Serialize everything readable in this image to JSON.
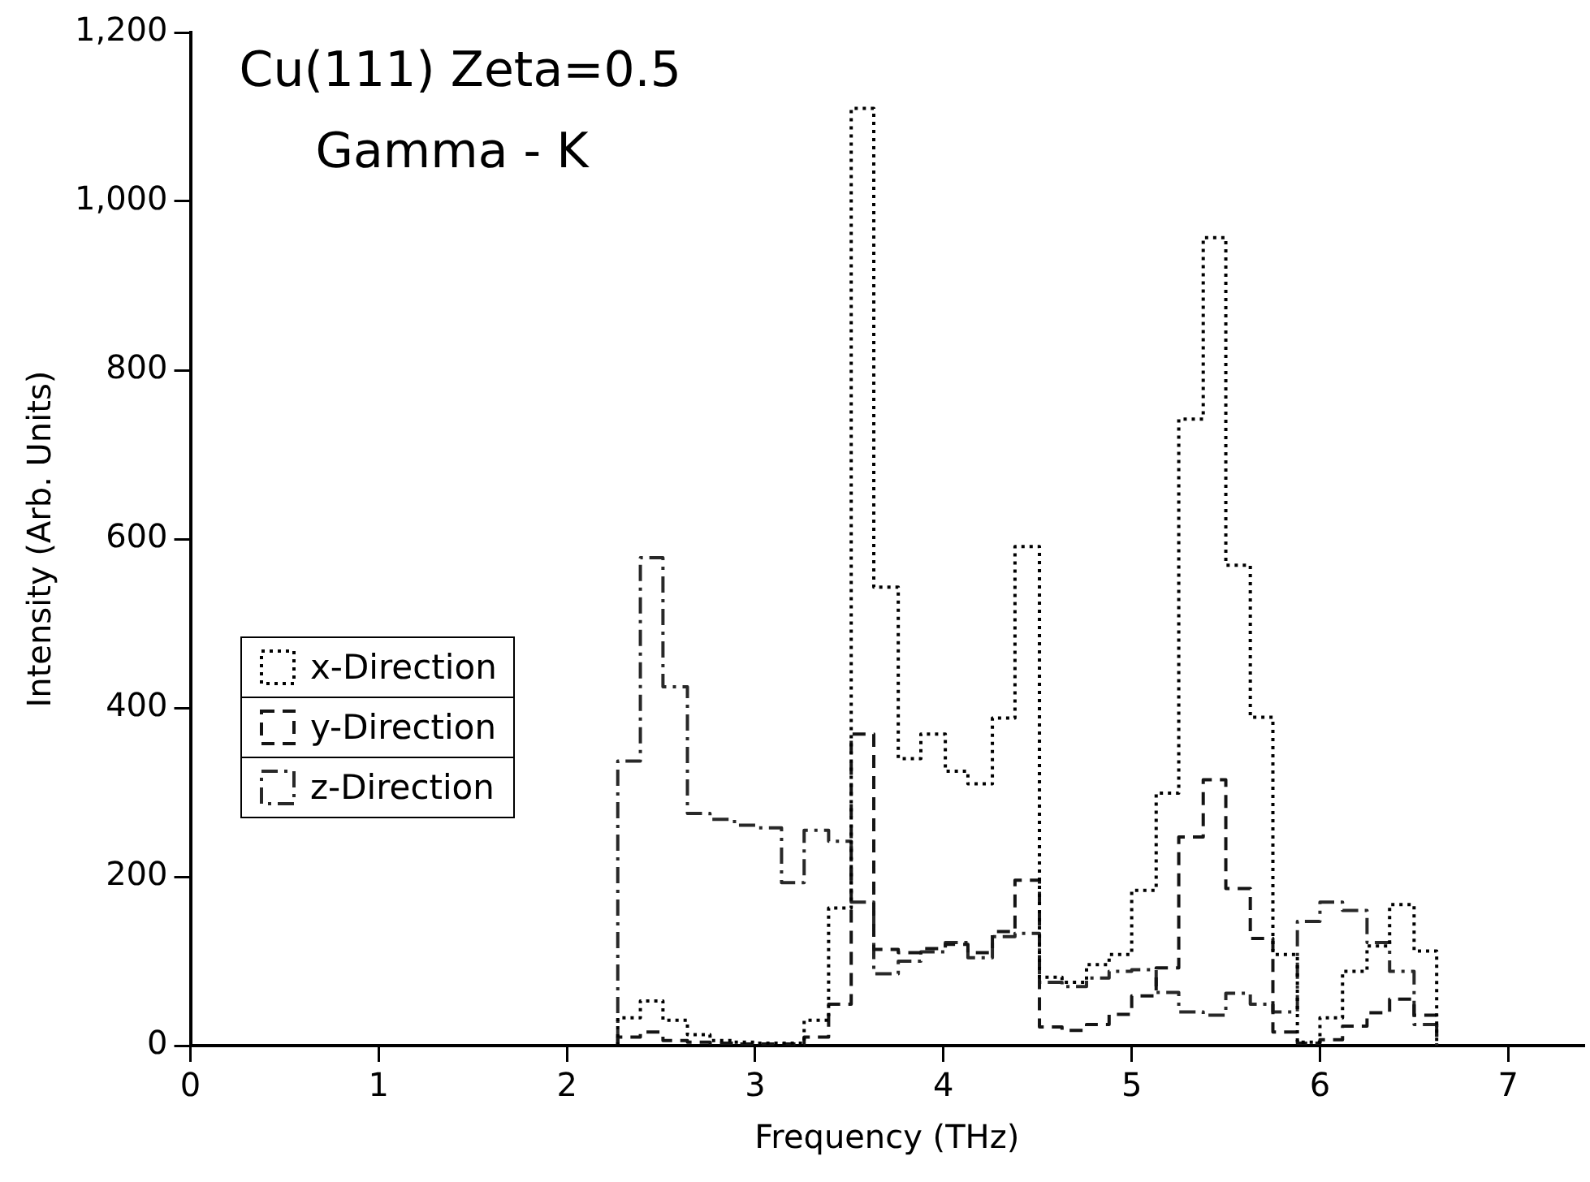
{
  "chart_data": {
    "type": "histogram",
    "xlabel": "Frequency (THz)",
    "ylabel": "Intensity (Arb. Units)",
    "annotations": [
      "Cu(111) Zeta=0.5",
      "Gamma - K"
    ],
    "bins": [
      2.27,
      2.39,
      2.51,
      2.64,
      2.76,
      2.89,
      3.01,
      3.14,
      3.26,
      3.39,
      3.51,
      3.63,
      3.76,
      3.88,
      4.01,
      4.13,
      4.26,
      4.38,
      4.51,
      4.63,
      4.76,
      4.88,
      5.0,
      5.13,
      5.25,
      5.38,
      5.5,
      5.63,
      5.75,
      5.88,
      6.0,
      6.12,
      6.25,
      6.37,
      6.5,
      6.62
    ],
    "series": [
      {
        "name": "x-Direction",
        "color": "#000000",
        "line_style": "dotted",
        "values": [
          33,
          53,
          30,
          13,
          6,
          4,
          3,
          3,
          30,
          163,
          1110,
          543,
          340,
          369,
          325,
          310,
          388,
          591,
          81,
          75,
          96,
          108,
          184,
          299,
          742,
          957,
          569,
          389,
          108,
          4,
          33,
          88,
          118,
          167,
          112
        ]
      },
      {
        "name": "y-Direction",
        "color": "#141414",
        "line_style": "dashed",
        "values": [
          10,
          16,
          6,
          4,
          3,
          2,
          2,
          2,
          10,
          49,
          369,
          114,
          110,
          115,
          120,
          110,
          135,
          196,
          22,
          18,
          25,
          37,
          59,
          92,
          247,
          315,
          186,
          127,
          16,
          3,
          7,
          23,
          39,
          55,
          36
        ]
      },
      {
        "name": "z-Direction",
        "color": "#282828",
        "line_style": "dashdot",
        "values": [
          337,
          578,
          425,
          275,
          268,
          261,
          258,
          193,
          255,
          242,
          170,
          85,
          100,
          111,
          122,
          104,
          129,
          133,
          75,
          70,
          80,
          88,
          90,
          63,
          40,
          36,
          62,
          49,
          40,
          147,
          170,
          160,
          122,
          88,
          25
        ]
      }
    ],
    "xlim": [
      0,
      7.4
    ],
    "xticks": [
      0,
      1,
      2,
      3,
      4,
      5,
      6,
      7
    ],
    "ylim": [
      0,
      1200
    ],
    "yticks": [
      0,
      200,
      400,
      600,
      800,
      {
        "value": 1000,
        "label": "1,000"
      },
      {
        "value": 1200,
        "label": "1,200"
      }
    ],
    "grid": false,
    "legend": "left",
    "marker": "none"
  }
}
